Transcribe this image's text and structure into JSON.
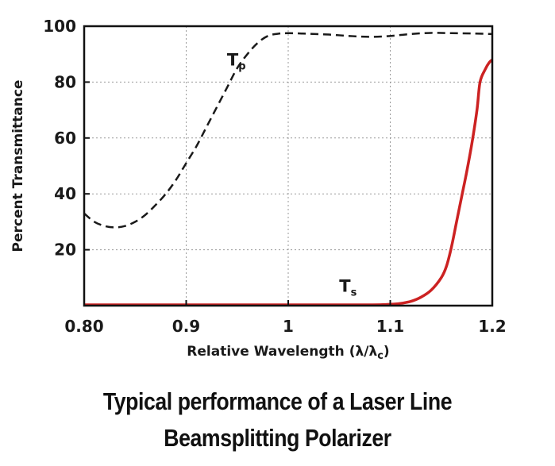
{
  "chart_data": {
    "type": "line",
    "xlabel": "Relative Wavelength (λ/λ",
    "xlabel_sub": "c",
    "xlabel_end": ")",
    "ylabel": "Percent Transmittance",
    "xlim": [
      0.8,
      1.2
    ],
    "ylim": [
      0,
      100
    ],
    "x_ticks": [
      0.8,
      0.9,
      1.0,
      1.1,
      1.2
    ],
    "x_tick_labels": [
      "0.80",
      "0.9",
      "1",
      "1.1",
      "1.2"
    ],
    "y_ticks": [
      20,
      40,
      60,
      80,
      100
    ],
    "y_tick_labels": [
      "20",
      "40",
      "60",
      "80",
      "100"
    ],
    "grid": true,
    "series": [
      {
        "name": "T",
        "name_sub": "p",
        "style": "dashed",
        "color": "#1a1a1a",
        "label_at": [
          0.94,
          86
        ],
        "points": [
          [
            0.8,
            33
          ],
          [
            0.81,
            30
          ],
          [
            0.82,
            28.5
          ],
          [
            0.83,
            28
          ],
          [
            0.84,
            28.5
          ],
          [
            0.85,
            30
          ],
          [
            0.86,
            32.5
          ],
          [
            0.87,
            36
          ],
          [
            0.88,
            40
          ],
          [
            0.89,
            45
          ],
          [
            0.9,
            51
          ],
          [
            0.91,
            57
          ],
          [
            0.92,
            64
          ],
          [
            0.93,
            71
          ],
          [
            0.94,
            78
          ],
          [
            0.95,
            85
          ],
          [
            0.96,
            90
          ],
          [
            0.97,
            94
          ],
          [
            0.98,
            96.5
          ],
          [
            0.99,
            97.3
          ],
          [
            1.0,
            97.5
          ],
          [
            1.02,
            97.3
          ],
          [
            1.04,
            97
          ],
          [
            1.06,
            96.5
          ],
          [
            1.08,
            96.2
          ],
          [
            1.1,
            96.5
          ],
          [
            1.12,
            97.2
          ],
          [
            1.14,
            97.6
          ],
          [
            1.16,
            97.5
          ],
          [
            1.18,
            97.4
          ],
          [
            1.2,
            97.2
          ]
        ]
      },
      {
        "name": "T",
        "name_sub": "s",
        "style": "solid",
        "color": "#cc2222",
        "label_at": [
          1.05,
          5
        ],
        "points": [
          [
            0.8,
            0.3
          ],
          [
            0.9,
            0.3
          ],
          [
            1.0,
            0.3
          ],
          [
            1.08,
            0.3
          ],
          [
            1.1,
            0.5
          ],
          [
            1.11,
            0.8
          ],
          [
            1.12,
            1.5
          ],
          [
            1.13,
            3
          ],
          [
            1.14,
            5.5
          ],
          [
            1.15,
            10
          ],
          [
            1.155,
            14
          ],
          [
            1.16,
            21
          ],
          [
            1.165,
            30
          ],
          [
            1.17,
            39
          ],
          [
            1.175,
            48
          ],
          [
            1.18,
            58
          ],
          [
            1.185,
            70
          ],
          [
            1.188,
            80
          ],
          [
            1.193,
            84.5
          ],
          [
            1.197,
            87
          ],
          [
            1.2,
            88
          ]
        ]
      }
    ]
  },
  "caption": {
    "line1": "Typical performance of a Laser Line",
    "line2": "Beamsplitting Polarizer"
  }
}
